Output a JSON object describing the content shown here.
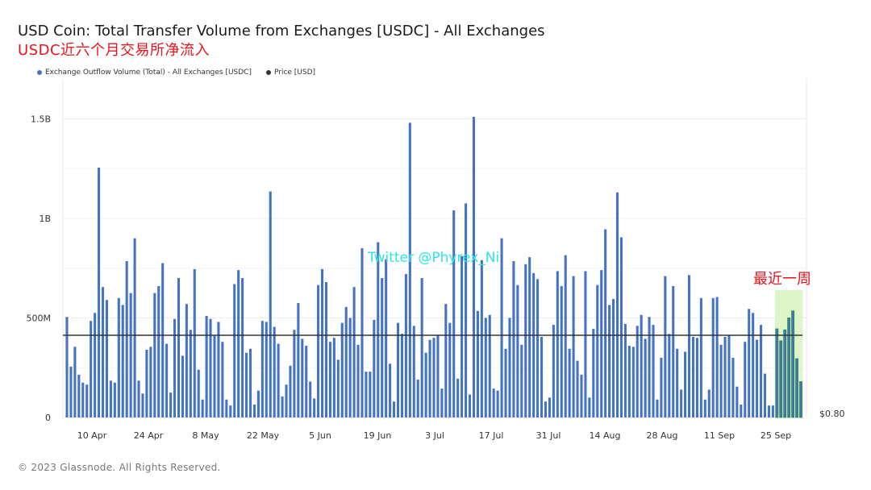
{
  "title": "USD Coin: Total Transfer Volume from Exchanges [USDC] - All Exchanges",
  "subtitle": "USDC近六个月交易所净流入",
  "legend": [
    {
      "label": "Exchange Outflow Volume (Total) - All Exchanges [USDC]",
      "color": "#4472c4"
    },
    {
      "label": "Price [USD]",
      "color": "#333333"
    }
  ],
  "footer": "© 2023 Glassnode. All Rights Reserved.",
  "watermark": "Twitter @Phyrex_Ni",
  "annotation": "最近一周",
  "right_axis_label": "$0.80",
  "chart_data": {
    "type": "bar",
    "title": "USD Coin: Total Transfer Volume from Exchanges [USDC] - All Exchanges",
    "ylim": [
      0,
      1700
    ],
    "y_unit": "M",
    "yticks": [
      {
        "value": 0,
        "label": "0"
      },
      {
        "value": 500,
        "label": "500M"
      },
      {
        "value": 1000,
        "label": "1B"
      },
      {
        "value": 1500,
        "label": "1.5B"
      }
    ],
    "xticks": [
      "10 Apr",
      "24 Apr",
      "8 May",
      "22 May",
      "5 Jun",
      "19 Jun",
      "3 Jul",
      "17 Jul",
      "31 Jul",
      "14 Aug",
      "28 Aug",
      "11 Sep",
      "25 Sep"
    ],
    "grid": true,
    "legend_position": "top-left",
    "series": [
      {
        "name": "Exchange Outflow Volume (Total) - All Exchanges [USDC]",
        "type": "bar",
        "color": "#4472c4",
        "values": [
          505,
          255,
          355,
          215,
          175,
          165,
          485,
          525,
          1255,
          655,
          590,
          185,
          175,
          600,
          565,
          785,
          625,
          900,
          185,
          120,
          340,
          355,
          625,
          660,
          775,
          370,
          125,
          495,
          700,
          310,
          570,
          440,
          745,
          240,
          90,
          510,
          495,
          410,
          480,
          380,
          90,
          60,
          670,
          740,
          700,
          325,
          345,
          65,
          135,
          485,
          480,
          1135,
          455,
          370,
          105,
          165,
          260,
          440,
          575,
          395,
          360,
          180,
          95,
          665,
          745,
          680,
          380,
          400,
          290,
          475,
          555,
          500,
          655,
          365,
          850,
          230,
          230,
          490,
          880,
          700,
          795,
          270,
          80,
          475,
          420,
          720,
          1480,
          460,
          190,
          700,
          325,
          390,
          400,
          415,
          145,
          570,
          475,
          1040,
          195,
          810,
          1075,
          115,
          1510,
          535,
          790,
          500,
          515,
          145,
          135,
          900,
          345,
          500,
          785,
          665,
          365,
          770,
          805,
          725,
          695,
          405,
          80,
          100,
          465,
          735,
          660,
          815,
          345,
          710,
          285,
          215,
          735,
          100,
          445,
          665,
          740,
          945,
          565,
          595,
          1130,
          905,
          470,
          360,
          355,
          460,
          515,
          395,
          505,
          465,
          90,
          300,
          710,
          420,
          660,
          345,
          140,
          330,
          715,
          405,
          400,
          600,
          90,
          140,
          600,
          605,
          365,
          405,
          415,
          300,
          155,
          65,
          380,
          545,
          525,
          390,
          465,
          220,
          60,
          60,
          445,
          385,
          440,
          500,
          535,
          295,
          180
        ],
        "highlight_last_n": 7,
        "highlight_color": "#2e8b3d"
      },
      {
        "name": "Price [USD]",
        "type": "line",
        "color": "#333333",
        "value_label": "$0.80"
      }
    ]
  }
}
